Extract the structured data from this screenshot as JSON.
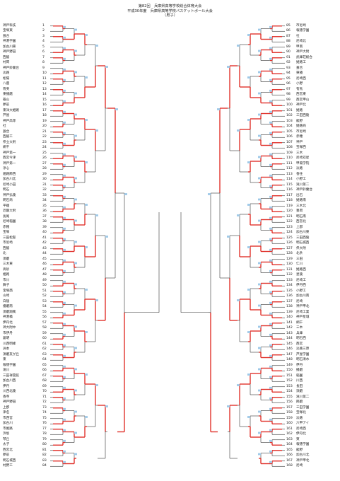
{
  "header": {
    "line1": "第82回　兵庫県高等学校総合体育大会",
    "line2": "平成30年度　兵庫県高等学校バスケットボール大会",
    "line3": "（男子）"
  },
  "left_teams": [
    "神戸科技",
    "宝塚東",
    "葺合",
    "神港学園",
    "加古川東",
    "神戸野田",
    "西脇",
    "村岡",
    "神戸鈴蘭台",
    "淡路",
    "松陽",
    "八鹿",
    "育英",
    "東播磨",
    "篠山",
    "夢前",
    "東洋大姫路",
    "芦屋",
    "神戸高専",
    "社",
    "葺合",
    "西脇工",
    "県立大附",
    "網干",
    "神戸第一",
    "西宮今津",
    "神戸第一",
    "淳心",
    "姫路飾西",
    "加古川北",
    "尼崎小田",
    "明石",
    "神戸弘陵",
    "明石商",
    "平磯",
    "近畿大附",
    "長尾",
    "尼崎稲園",
    "赤穂",
    "宝塚",
    "三田松聖",
    "市尼崎",
    "西脇",
    "北",
    "須磨",
    "三木東",
    "高砂",
    "姫路",
    "市川",
    "舞子",
    "宝塚西",
    "山崎",
    "白陵",
    "播磨南",
    "須磨翔風",
    "神港橘",
    "伊丹北",
    "神大附中",
    "市伊丹",
    "蒼明",
    "川西明峰",
    "洲本",
    "須磨友が丘",
    "東",
    "報徳学園",
    "滝川",
    "三田祥雲館",
    "加古川西",
    "伊丹",
    "川西北陵",
    "香寺",
    "神戸野田",
    "上郡",
    "津名",
    "市西宮",
    "加古川",
    "市姫路",
    "浜坂",
    "琴丘",
    "太子",
    "西宮北",
    "夢前",
    "明石城西",
    "村野工"
  ],
  "right_teams": [
    "市尼崎",
    "報徳学園",
    "社",
    "尼崎北",
    "甲南",
    "神戸大附",
    "武庫荘総合",
    "姫路工",
    "葺合",
    "東播",
    "尼崎西",
    "小野",
    "有馬",
    "西宮東",
    "西宮甲山",
    "神戸北",
    "姫路",
    "三田西陵",
    "龍野",
    "姫路商",
    "市尼崎",
    "赤穂",
    "神戸",
    "宝塚西",
    "三木",
    "尼崎双星",
    "甲陽学院",
    "淡路",
    "香住",
    "小野工",
    "滝川第二",
    "神戸鈴蘭台",
    "出石",
    "姫路南",
    "三木北",
    "豊岡",
    "明石南",
    "西宮北",
    "上郡",
    "加古川東",
    "三田西陵",
    "明石城西",
    "県大附",
    "北条",
    "三田",
    "仁川",
    "姫路西",
    "星陵",
    "尼崎工",
    "伊丹西",
    "小野工",
    "加古川南",
    "尼崎",
    "神戸甲北",
    "尼崎工業",
    "神戸星城",
    "網干",
    "三木",
    "兵庫",
    "明石西",
    "西宮",
    "淡路三原",
    "芦屋学園",
    "明石清水",
    "伊丹",
    "播磨",
    "稲園",
    "川西",
    "長田",
    "須磨",
    "滝川第二",
    "飾磨",
    "三田学園",
    "宝塚北",
    "淡路",
    "六甲アイ",
    "尼崎西",
    "伊丹北",
    "東",
    "報徳学園",
    "龍野",
    "加古川北",
    "神戸甲北",
    "尼崎"
  ],
  "right_start_no": 85
}
